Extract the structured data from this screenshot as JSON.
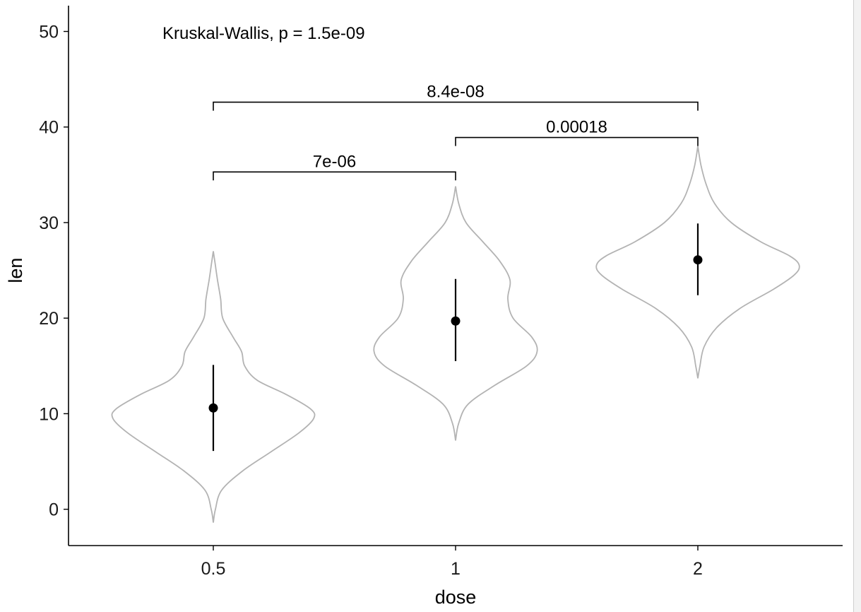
{
  "chart_data": {
    "type": "violin",
    "xlabel": "dose",
    "ylabel": "len",
    "categories": [
      "0.5",
      "1",
      "2"
    ],
    "ylim": [
      -3.8,
      52.7
    ],
    "yticks": [
      0,
      10,
      20,
      30,
      40,
      50
    ],
    "grid": false,
    "legend": "none",
    "colors": {
      "violin_outline": "#b3b3b3",
      "point": "#000000"
    },
    "summary": [
      {
        "category": "0.5",
        "mean": 10.6,
        "lower": 6.1,
        "upper": 15.1
      },
      {
        "category": "1",
        "mean": 19.7,
        "lower": 15.5,
        "upper": 24.1
      },
      {
        "category": "2",
        "mean": 26.1,
        "lower": 22.4,
        "upper": 29.9
      }
    ],
    "violins": [
      {
        "category": "0.5",
        "y_min": -1.4,
        "y_max": 27.0,
        "density": [
          [
            -1.4,
            0.0
          ],
          [
            0,
            0.02
          ],
          [
            2,
            0.08
          ],
          [
            4,
            0.28
          ],
          [
            6,
            0.55
          ],
          [
            8,
            0.82
          ],
          [
            9.5,
            0.96
          ],
          [
            10.5,
            0.93
          ],
          [
            12,
            0.7
          ],
          [
            13.5,
            0.42
          ],
          [
            15,
            0.3
          ],
          [
            16.5,
            0.27
          ],
          [
            18,
            0.19
          ],
          [
            20,
            0.09
          ],
          [
            22,
            0.07
          ],
          [
            24,
            0.04
          ],
          [
            25.5,
            0.02
          ],
          [
            27,
            0.0
          ]
        ]
      },
      {
        "category": "1",
        "y_min": 7.2,
        "y_max": 33.8,
        "density": [
          [
            7.2,
            0.0
          ],
          [
            9,
            0.03
          ],
          [
            11,
            0.12
          ],
          [
            13,
            0.38
          ],
          [
            15,
            0.68
          ],
          [
            16.5,
            0.78
          ],
          [
            18,
            0.73
          ],
          [
            20,
            0.55
          ],
          [
            22,
            0.5
          ],
          [
            24,
            0.52
          ],
          [
            26,
            0.42
          ],
          [
            28,
            0.26
          ],
          [
            30,
            0.1
          ],
          [
            32,
            0.03
          ],
          [
            33.8,
            0.0
          ]
        ]
      },
      {
        "category": "2",
        "y_min": 13.7,
        "y_max": 38.0,
        "density": [
          [
            13.7,
            0.0
          ],
          [
            15,
            0.02
          ],
          [
            17,
            0.06
          ],
          [
            19,
            0.18
          ],
          [
            21,
            0.4
          ],
          [
            23,
            0.72
          ],
          [
            24.5,
            0.92
          ],
          [
            25.5,
            0.97
          ],
          [
            26.5,
            0.88
          ],
          [
            28,
            0.6
          ],
          [
            30,
            0.32
          ],
          [
            32,
            0.16
          ],
          [
            34,
            0.08
          ],
          [
            36,
            0.03
          ],
          [
            38,
            0.0
          ]
        ]
      }
    ],
    "comparisons": [
      {
        "group1": "0.5",
        "group2": "1",
        "p_label": "7e-06",
        "y": 35.3
      },
      {
        "group1": "1",
        "group2": "2",
        "p_label": "0.00018",
        "y": 38.9
      },
      {
        "group1": "0.5",
        "group2": "2",
        "p_label": "8.4e-08",
        "y": 42.6
      }
    ],
    "global_test": {
      "label": "Kruskal-Wallis, p = 1.5e-09",
      "x_category": "0.5",
      "y": 49.9
    }
  }
}
